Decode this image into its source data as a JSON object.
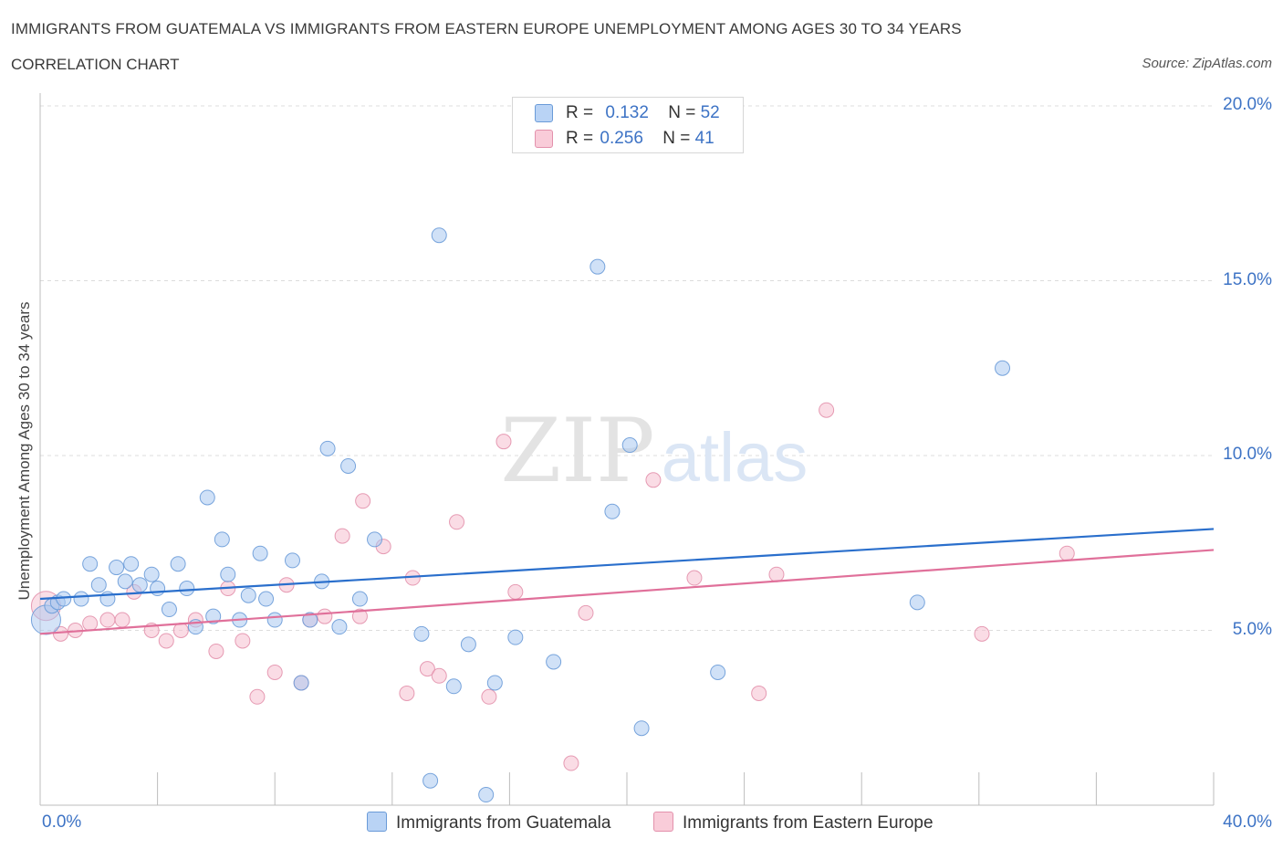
{
  "chart_data": {
    "type": "scatter",
    "title": "IMMIGRANTS FROM GUATEMALA VS IMMIGRANTS FROM EASTERN EUROPE UNEMPLOYMENT AMONG AGES 30 TO 34 YEARS",
    "subtitle": "CORRELATION CHART",
    "source": "Source: ZipAtlas.com",
    "xlabel": "",
    "ylabel": "Unemployment Among Ages 30 to 34 years",
    "xlim": [
      0,
      40
    ],
    "ylim": [
      0,
      20
    ],
    "x_tick_labels": [
      "0.0%",
      "40.0%"
    ],
    "y_tick_labels": [
      "20.0%",
      "15.0%",
      "10.0%",
      "5.0%"
    ],
    "y_tick_values": [
      20,
      15,
      10,
      5
    ],
    "grid": true,
    "watermark": "ZIPatlas",
    "legend_stats": [
      {
        "r_label": "R =",
        "r_value": "0.132",
        "n_label": "N =",
        "n_value": "52"
      },
      {
        "r_label": "R =",
        "r_value": "0.256",
        "n_label": "N =",
        "n_value": "41"
      }
    ],
    "series": [
      {
        "name": "Immigrants from Guatemala",
        "color": "#a9c8f0",
        "edge_color": "#6a9bd8",
        "trend_color": "#2a6fcc",
        "trend": {
          "x": [
            0,
            40
          ],
          "y": [
            5.9,
            7.9
          ]
        },
        "points": [
          [
            0.2,
            5.3
          ],
          [
            0.4,
            5.7
          ],
          [
            0.6,
            5.8
          ],
          [
            0.8,
            5.9
          ],
          [
            1.4,
            5.9
          ],
          [
            1.7,
            6.9
          ],
          [
            2.0,
            6.3
          ],
          [
            2.3,
            5.9
          ],
          [
            2.6,
            6.8
          ],
          [
            2.9,
            6.4
          ],
          [
            3.1,
            6.9
          ],
          [
            3.4,
            6.3
          ],
          [
            3.8,
            6.6
          ],
          [
            4.0,
            6.2
          ],
          [
            4.4,
            5.6
          ],
          [
            4.7,
            6.9
          ],
          [
            5.0,
            6.2
          ],
          [
            5.3,
            5.1
          ],
          [
            5.7,
            8.8
          ],
          [
            5.9,
            5.4
          ],
          [
            6.2,
            7.6
          ],
          [
            6.4,
            6.6
          ],
          [
            6.8,
            5.3
          ],
          [
            7.1,
            6.0
          ],
          [
            7.5,
            7.2
          ],
          [
            7.7,
            5.9
          ],
          [
            8.0,
            5.3
          ],
          [
            8.6,
            7.0
          ],
          [
            8.9,
            3.5
          ],
          [
            9.2,
            5.3
          ],
          [
            9.6,
            6.4
          ],
          [
            9.8,
            10.2
          ],
          [
            10.2,
            5.1
          ],
          [
            10.5,
            9.7
          ],
          [
            10.9,
            5.9
          ],
          [
            11.4,
            7.6
          ],
          [
            13.0,
            4.9
          ],
          [
            13.3,
            0.7
          ],
          [
            13.6,
            16.3
          ],
          [
            14.1,
            3.4
          ],
          [
            14.6,
            4.6
          ],
          [
            15.2,
            0.3
          ],
          [
            15.5,
            3.5
          ],
          [
            16.2,
            4.8
          ],
          [
            17.5,
            4.1
          ],
          [
            19.0,
            15.4
          ],
          [
            19.5,
            8.4
          ],
          [
            20.5,
            2.2
          ],
          [
            20.1,
            10.3
          ],
          [
            23.1,
            3.8
          ],
          [
            29.9,
            5.8
          ],
          [
            32.8,
            12.5
          ]
        ]
      },
      {
        "name": "Immigrants from Eastern Europe",
        "color": "#f6bfd0",
        "edge_color": "#e391ac",
        "trend_color": "#e0709a",
        "trend": {
          "x": [
            0,
            40
          ],
          "y": [
            4.9,
            7.3
          ]
        },
        "points": [
          [
            0.2,
            5.7
          ],
          [
            0.7,
            4.9
          ],
          [
            1.2,
            5.0
          ],
          [
            1.7,
            5.2
          ],
          [
            2.3,
            5.3
          ],
          [
            2.8,
            5.3
          ],
          [
            3.2,
            6.1
          ],
          [
            3.8,
            5.0
          ],
          [
            4.3,
            4.7
          ],
          [
            4.8,
            5.0
          ],
          [
            5.3,
            5.3
          ],
          [
            6.0,
            4.4
          ],
          [
            6.4,
            6.2
          ],
          [
            6.9,
            4.7
          ],
          [
            7.4,
            3.1
          ],
          [
            8.0,
            3.8
          ],
          [
            8.4,
            6.3
          ],
          [
            8.9,
            3.5
          ],
          [
            9.2,
            5.3
          ],
          [
            9.7,
            5.4
          ],
          [
            10.3,
            7.7
          ],
          [
            10.9,
            5.4
          ],
          [
            11.0,
            8.7
          ],
          [
            11.7,
            7.4
          ],
          [
            12.5,
            3.2
          ],
          [
            12.7,
            6.5
          ],
          [
            13.2,
            3.9
          ],
          [
            13.6,
            3.7
          ],
          [
            14.2,
            8.1
          ],
          [
            15.3,
            3.1
          ],
          [
            15.8,
            10.4
          ],
          [
            16.2,
            6.1
          ],
          [
            18.1,
            1.2
          ],
          [
            18.6,
            5.5
          ],
          [
            20.9,
            9.3
          ],
          [
            22.3,
            6.5
          ],
          [
            24.5,
            3.2
          ],
          [
            25.1,
            6.6
          ],
          [
            26.8,
            11.3
          ],
          [
            32.1,
            4.9
          ],
          [
            35.0,
            7.2
          ]
        ]
      }
    ]
  }
}
